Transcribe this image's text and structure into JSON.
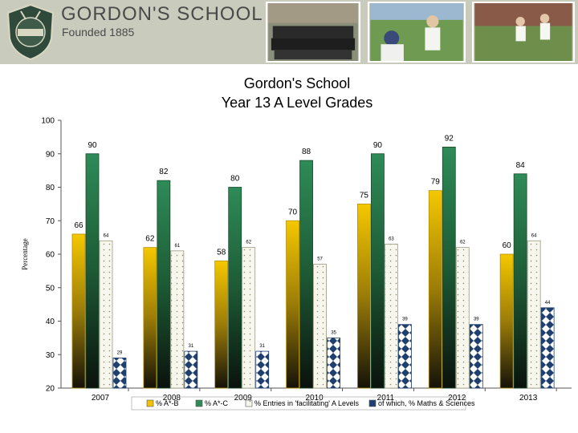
{
  "header": {
    "school_name": "GORDON'S SCHOOL",
    "founded": "Founded 1885",
    "crest_icon": "school-crest-icon",
    "photo_icons": [
      "team-photo-icon",
      "cricket-photo-icon",
      "running-photo-icon"
    ]
  },
  "chart_data": {
    "type": "bar",
    "title": "Gordon's School",
    "subtitle": "Year 13 A Level Grades",
    "xlabel": "",
    "ylabel": "Percentage",
    "ylim": [
      20,
      100
    ],
    "yticks": [
      20,
      30,
      40,
      50,
      60,
      70,
      80,
      90,
      100
    ],
    "categories": [
      "2007",
      "2008",
      "2009",
      "2010",
      "2011",
      "2012",
      "2013"
    ],
    "series": [
      {
        "name": "% A*-B",
        "values": [
          66,
          62,
          58,
          70,
          75,
          79,
          60
        ],
        "labels": [
          "66",
          "62",
          "58",
          "70",
          "75",
          "79",
          "60"
        ],
        "color": "#f2c200"
      },
      {
        "name": "% A*-C",
        "values": [
          90,
          82,
          80,
          88,
          90,
          92,
          84
        ],
        "labels": [
          "90",
          "82",
          "80",
          "88",
          "90",
          "92",
          "84"
        ],
        "color": "#2e8b57"
      },
      {
        "name": "% Entries in 'facilitating' A Levels",
        "values": [
          64,
          61,
          62,
          57,
          63,
          62,
          64
        ],
        "labels": [
          "64",
          "61",
          "62",
          "57",
          "63",
          "62",
          "64"
        ],
        "color": "#f4f4ea"
      },
      {
        "name": "of which, % Maths & Sciences",
        "values": [
          29,
          31,
          31,
          35,
          39,
          39,
          44
        ],
        "labels": [
          "29",
          "31",
          "31",
          "35",
          "39",
          "39",
          "44"
        ],
        "color": "#1f3f6e"
      }
    ],
    "grid": false,
    "legend": "bottom"
  }
}
